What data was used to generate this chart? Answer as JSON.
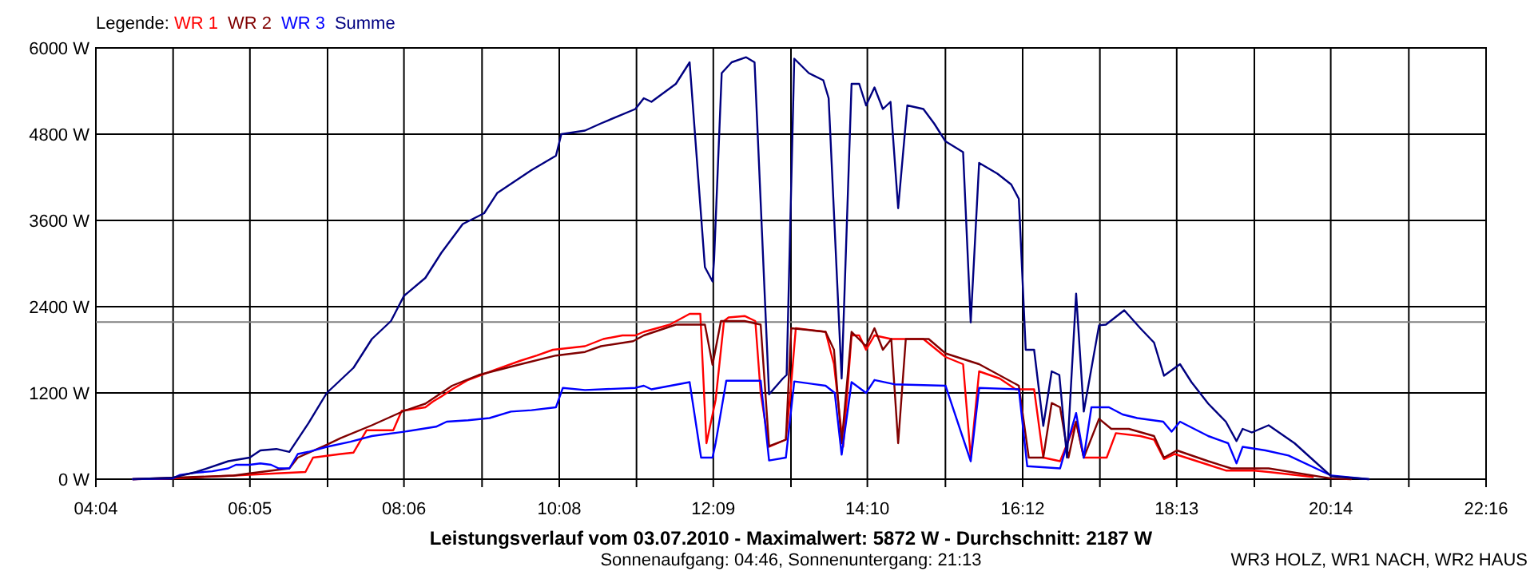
{
  "chart_data": {
    "type": "line",
    "title": "Leistungsverlauf vom 03.07.2010 - Maximalwert: 5872 W - Durchschnitt: 2187 W",
    "subtitle": "Sonnenaufgang: 04:46, Sonnenuntergang: 21:13",
    "annotations": [
      "WR3 HOLZ, WR1 NACH, WR2 HAUS"
    ],
    "legend_title": "Legende:",
    "legend": "top left",
    "grid": true,
    "marker": "none",
    "line_style": "solid",
    "xlim": [
      4.0667,
      22.2667
    ],
    "xticks": [
      {
        "value": 4.0667,
        "label": "04:04"
      },
      {
        "value": 5.0778,
        "label": null
      },
      {
        "value": 6.0833,
        "label": "06:05"
      },
      {
        "value": 7.1,
        "label": null
      },
      {
        "value": 8.1,
        "label": "08:06"
      },
      {
        "value": 9.1222,
        "label": null
      },
      {
        "value": 10.1333,
        "label": "10:08"
      },
      {
        "value": 11.1444,
        "label": null
      },
      {
        "value": 12.15,
        "label": "12:09"
      },
      {
        "value": 13.1667,
        "label": null
      },
      {
        "value": 14.1667,
        "label": "14:10"
      },
      {
        "value": 15.1889,
        "label": null
      },
      {
        "value": 16.2,
        "label": "16:12"
      },
      {
        "value": 17.2111,
        "label": null
      },
      {
        "value": 18.2167,
        "label": "18:13"
      },
      {
        "value": 19.2333,
        "label": null
      },
      {
        "value": 20.2333,
        "label": "20:14"
      },
      {
        "value": 21.2556,
        "label": null
      },
      {
        "value": 22.2667,
        "label": "22:16"
      }
    ],
    "ylim": [
      0,
      6000
    ],
    "yticks": [
      {
        "value": 0,
        "label": "0 W"
      },
      {
        "value": 1200,
        "label": "1200 W"
      },
      {
        "value": 2400,
        "label": "2400 W"
      },
      {
        "value": 3600,
        "label": "3600 W"
      },
      {
        "value": 4800,
        "label": "4800 W"
      },
      {
        "value": 6000,
        "label": "6000 W"
      }
    ],
    "ref_lines": [
      {
        "axis": "y",
        "value": 2187,
        "color": "#808080"
      }
    ],
    "series": [
      {
        "name": "WR 1",
        "color": "#ff0000",
        "x": [
          4.55,
          5.07,
          5.87,
          6.43,
          6.81,
          6.91,
          7.27,
          7.44,
          7.61,
          7.96,
          8.07,
          8.38,
          8.48,
          8.59,
          8.73,
          8.94,
          9.29,
          9.63,
          9.84,
          10.05,
          10.47,
          10.71,
          10.96,
          11.13,
          11.24,
          11.58,
          11.84,
          11.98,
          12.06,
          12.18,
          12.29,
          12.35,
          12.56,
          12.7,
          12.77,
          12.88,
          13.1,
          13.16,
          13.23,
          13.62,
          13.73,
          13.85,
          13.96,
          14.06,
          14.15,
          14.26,
          14.48,
          14.9,
          15.19,
          15.42,
          15.52,
          15.63,
          15.9,
          16.11,
          16.35,
          16.47,
          16.69,
          16.9,
          17.0,
          17.3,
          17.42,
          17.74,
          17.92,
          18.05,
          18.19,
          18.63,
          18.86,
          19.23,
          19.42,
          20.0
        ],
        "values": [
          0,
          10,
          50,
          80,
          100,
          300,
          350,
          370,
          680,
          680,
          950,
          1000,
          1080,
          1150,
          1250,
          1380,
          1520,
          1650,
          1720,
          1800,
          1850,
          1950,
          2000,
          2000,
          2050,
          2150,
          2300,
          2300,
          500,
          1100,
          2200,
          2250,
          2270,
          2200,
          1200,
          450,
          550,
          1200,
          2100,
          2050,
          1600,
          450,
          2000,
          2000,
          1800,
          2000,
          1950,
          1950,
          1700,
          1600,
          300,
          1500,
          1400,
          1250,
          1250,
          300,
          250,
          800,
          300,
          300,
          640,
          600,
          550,
          280,
          350,
          200,
          120,
          120,
          100,
          30
        ]
      },
      {
        "name": "WR 2",
        "color": "#800000",
        "x": [
          4.55,
          5.87,
          6.08,
          6.6,
          6.71,
          7.09,
          7.27,
          7.68,
          8.1,
          8.38,
          8.73,
          9.08,
          9.63,
          10.09,
          10.47,
          10.68,
          11.1,
          11.24,
          11.66,
          11.84,
          12.04,
          12.14,
          12.25,
          12.56,
          12.77,
          12.88,
          13.1,
          13.17,
          13.62,
          13.73,
          13.83,
          13.96,
          14.15,
          14.26,
          14.37,
          14.48,
          14.57,
          14.67,
          14.97,
          15.19,
          15.63,
          16.15,
          16.28,
          16.47,
          16.58,
          16.69,
          16.8,
          16.9,
          17.0,
          17.2,
          17.36,
          17.59,
          17.92,
          18.05,
          18.22,
          18.63,
          18.93,
          19.42,
          20.24,
          20.5
        ],
        "values": [
          0,
          50,
          80,
          150,
          300,
          480,
          570,
          750,
          950,
          1050,
          1300,
          1450,
          1600,
          1720,
          1770,
          1850,
          1920,
          2000,
          2150,
          2150,
          2150,
          1590,
          2200,
          2200,
          2150,
          460,
          550,
          2100,
          2050,
          1800,
          500,
          2050,
          1850,
          2100,
          1800,
          1950,
          500,
          1950,
          1950,
          1750,
          1600,
          1300,
          300,
          300,
          1060,
          1000,
          300,
          800,
          300,
          840,
          700,
          700,
          600,
          300,
          400,
          250,
          150,
          150,
          10,
          0
        ]
      },
      {
        "name": "WR 3",
        "color": "#0000ff",
        "x": [
          4.55,
          5.07,
          5.17,
          5.38,
          5.59,
          5.8,
          5.9,
          6.08,
          6.22,
          6.36,
          6.46,
          6.6,
          6.71,
          6.85,
          7.09,
          7.4,
          7.68,
          8.1,
          8.52,
          8.66,
          8.94,
          9.22,
          9.5,
          9.77,
          10.09,
          10.18,
          10.47,
          11.13,
          11.24,
          11.34,
          11.84,
          11.99,
          12.14,
          12.18,
          12.32,
          12.77,
          12.88,
          13.1,
          13.21,
          13.62,
          13.74,
          13.83,
          13.96,
          14.15,
          14.26,
          14.52,
          15.19,
          15.52,
          15.63,
          16.15,
          16.26,
          16.69,
          16.9,
          17.0,
          17.1,
          17.33,
          17.51,
          17.7,
          18.04,
          18.15,
          18.26,
          18.63,
          18.89,
          19.0,
          19.08,
          19.38,
          19.68,
          20.24,
          20.73
        ],
        "values": [
          0,
          10,
          60,
          90,
          110,
          150,
          200,
          200,
          220,
          200,
          150,
          150,
          350,
          380,
          450,
          520,
          600,
          660,
          730,
          800,
          820,
          850,
          940,
          960,
          1000,
          1270,
          1240,
          1270,
          1300,
          1250,
          1350,
          300,
          300,
          500,
          1370,
          1370,
          260,
          300,
          1360,
          1300,
          1200,
          340,
          1350,
          1200,
          1380,
          1320,
          1300,
          250,
          1270,
          1250,
          180,
          150,
          920,
          300,
          1000,
          1000,
          900,
          850,
          800,
          660,
          800,
          600,
          500,
          220,
          450,
          400,
          330,
          50,
          0
        ]
      },
      {
        "name": "Summe",
        "color": "#000080",
        "x": [
          4.55,
          5.07,
          5.38,
          5.8,
          6.08,
          6.22,
          6.43,
          6.6,
          6.85,
          7.09,
          7.44,
          7.68,
          7.93,
          8.1,
          8.38,
          8.59,
          8.87,
          9.15,
          9.32,
          9.77,
          10.09,
          10.16,
          10.47,
          10.68,
          11.13,
          11.24,
          11.34,
          11.66,
          11.84,
          12.04,
          12.14,
          12.16,
          12.26,
          12.39,
          12.58,
          12.69,
          12.88,
          13.06,
          13.11,
          13.21,
          13.4,
          13.59,
          13.66,
          13.83,
          13.96,
          14.06,
          14.15,
          14.26,
          14.37,
          14.47,
          14.57,
          14.69,
          14.9,
          15.04,
          15.19,
          15.42,
          15.52,
          15.63,
          15.87,
          16.05,
          16.15,
          16.24,
          16.35,
          16.47,
          16.58,
          16.68,
          16.78,
          16.9,
          17.0,
          17.2,
          17.29,
          17.53,
          17.74,
          17.92,
          18.05,
          18.26,
          18.41,
          18.63,
          18.86,
          19.0,
          19.08,
          19.2,
          19.42,
          19.76,
          20.02,
          20.24,
          20.73
        ],
        "values": [
          0,
          20,
          100,
          250,
          300,
          400,
          420,
          380,
          780,
          1200,
          1550,
          1950,
          2200,
          2550,
          2800,
          3150,
          3550,
          3700,
          3980,
          4300,
          4500,
          4800,
          4850,
          4950,
          5150,
          5300,
          5250,
          5500,
          5800,
          2950,
          2750,
          3050,
          5650,
          5800,
          5870,
          5800,
          1180,
          1400,
          1450,
          5850,
          5650,
          5550,
          5300,
          1400,
          5500,
          5500,
          5200,
          5450,
          5150,
          5250,
          3770,
          5200,
          5150,
          4950,
          4700,
          4550,
          2180,
          4400,
          4250,
          4100,
          3900,
          1800,
          1800,
          740,
          1500,
          1450,
          300,
          2580,
          940,
          2140,
          2150,
          2350,
          2100,
          1900,
          1440,
          1600,
          1350,
          1050,
          800,
          530,
          700,
          650,
          750,
          500,
          250,
          40,
          0
        ]
      }
    ]
  }
}
